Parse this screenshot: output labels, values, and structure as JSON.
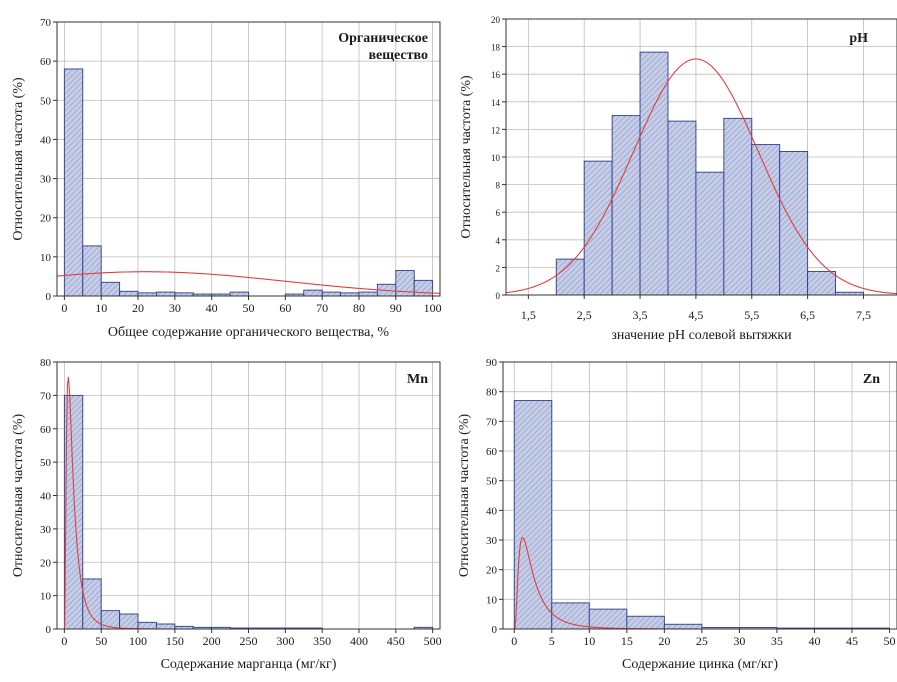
{
  "colors": {
    "bar_fill": "#c6cde6",
    "bar_stroke": "#2c3c8c",
    "bar_hatch": "#8e9bc9",
    "curve": "#e04040",
    "grid": "#bdbdbd",
    "frame": "#333333"
  },
  "chart_data": [
    {
      "type": "bar",
      "title": "Органическое вещество",
      "title_lines": [
        "Органическое",
        "вещество"
      ],
      "xlabel": "Общее содержание органического вещества, %",
      "ylabel": "Относительная частота (%)",
      "xlim": [
        -2,
        102
      ],
      "ylim": [
        0,
        70
      ],
      "xticks": [
        0,
        10,
        20,
        30,
        40,
        50,
        60,
        70,
        80,
        90,
        100
      ],
      "xtick_labels": [
        "0",
        "10",
        "20",
        "30",
        "40",
        "50",
        "60",
        "70",
        "80",
        "90",
        "100"
      ],
      "yticks": [
        0,
        10,
        20,
        30,
        40,
        50,
        60,
        70
      ],
      "ytick_labels": [
        "0",
        "10",
        "20",
        "30",
        "40",
        "50",
        "60",
        "70"
      ],
      "bins": [
        [
          0,
          5
        ],
        [
          5,
          10
        ],
        [
          10,
          15
        ],
        [
          15,
          20
        ],
        [
          20,
          25
        ],
        [
          25,
          30
        ],
        [
          30,
          35
        ],
        [
          35,
          40
        ],
        [
          40,
          45
        ],
        [
          45,
          50
        ],
        [
          50,
          55
        ],
        [
          55,
          60
        ],
        [
          60,
          65
        ],
        [
          65,
          70
        ],
        [
          70,
          75
        ],
        [
          75,
          80
        ],
        [
          80,
          85
        ],
        [
          85,
          90
        ],
        [
          90,
          95
        ],
        [
          95,
          100
        ]
      ],
      "values": [
        58,
        12.8,
        3.5,
        1.2,
        0.8,
        1.0,
        0.8,
        0.5,
        0.5,
        1.0,
        0,
        0,
        0.5,
        1.5,
        1.0,
        0.8,
        1.0,
        3.0,
        6.5,
        4.0
      ],
      "curve": {
        "type": "normal",
        "amplitude": 6.2,
        "mean": 22,
        "sd": 38
      }
    },
    {
      "type": "bar",
      "title": "pH",
      "xlabel": "значение pH солевой вытяжки",
      "ylabel": "Относительная частота (%)",
      "xlim": [
        1.1,
        8.1
      ],
      "ylim": [
        0,
        20
      ],
      "xticks": [
        1.5,
        2.5,
        3.5,
        4.5,
        5.5,
        6.5,
        7.5
      ],
      "xtick_labels": [
        "1,5",
        "2,5",
        "3,5",
        "4,5",
        "5,5",
        "6,5",
        "7,5"
      ],
      "yticks": [
        0,
        2,
        4,
        6,
        8,
        10,
        12,
        14,
        16,
        18,
        20
      ],
      "ytick_labels": [
        "0",
        "2",
        "4",
        "6",
        "8",
        "10",
        "12",
        "14",
        "16",
        "18",
        "20"
      ],
      "bins": [
        [
          2.0,
          2.5
        ],
        [
          2.5,
          3.0
        ],
        [
          3.0,
          3.5
        ],
        [
          3.5,
          4.0
        ],
        [
          4.0,
          4.5
        ],
        [
          4.5,
          5.0
        ],
        [
          5.0,
          5.5
        ],
        [
          5.5,
          6.0
        ],
        [
          6.0,
          6.5
        ],
        [
          6.5,
          7.0
        ],
        [
          7.0,
          7.5
        ]
      ],
      "values": [
        2.6,
        9.7,
        13.0,
        17.6,
        12.6,
        8.9,
        12.8,
        10.9,
        10.4,
        1.7,
        0.2
      ],
      "curve": {
        "type": "normal",
        "amplitude": 17.1,
        "mean": 4.5,
        "sd": 1.12
      }
    },
    {
      "type": "bar",
      "title": "Mn",
      "xlabel": "Содержание марганца (мг/кг)",
      "ylabel": "Относительная частота (%)",
      "xlim": [
        -10,
        510
      ],
      "ylim": [
        0,
        80
      ],
      "xticks": [
        0,
        50,
        100,
        150,
        200,
        250,
        300,
        350,
        400,
        450,
        500
      ],
      "xtick_labels": [
        "0",
        "50",
        "100",
        "150",
        "200",
        "250",
        "300",
        "350",
        "400",
        "450",
        "500"
      ],
      "yticks": [
        0,
        10,
        20,
        30,
        40,
        50,
        60,
        70,
        80
      ],
      "ytick_labels": [
        "0",
        "10",
        "20",
        "30",
        "40",
        "50",
        "60",
        "70",
        "80"
      ],
      "bins": [
        [
          0,
          25
        ],
        [
          25,
          50
        ],
        [
          50,
          75
        ],
        [
          75,
          100
        ],
        [
          100,
          125
        ],
        [
          125,
          150
        ],
        [
          150,
          175
        ],
        [
          175,
          200
        ],
        [
          200,
          225
        ],
        [
          225,
          250
        ],
        [
          250,
          275
        ],
        [
          275,
          300
        ],
        [
          300,
          325
        ],
        [
          325,
          350
        ],
        [
          475,
          500
        ]
      ],
      "values": [
        70,
        15,
        5.5,
        4.5,
        2.0,
        1.5,
        0.8,
        0.5,
        0.5,
        0.3,
        0.3,
        0.3,
        0.3,
        0.3,
        0.5
      ],
      "curve": {
        "type": "lognormal",
        "amplitude": 1100,
        "mu": 2.3,
        "sigma": 0.8
      }
    },
    {
      "type": "bar",
      "title": "Zn",
      "xlabel": "Содержание цинка (мг/кг)",
      "ylabel": "Относительная частота (%)",
      "xlim": [
        -1.5,
        51
      ],
      "ylim": [
        0,
        90
      ],
      "xticks": [
        0,
        5,
        10,
        15,
        20,
        25,
        30,
        35,
        40,
        45,
        50
      ],
      "xtick_labels": [
        "0",
        "5",
        "10",
        "15",
        "20",
        "25",
        "30",
        "35",
        "40",
        "45",
        "50"
      ],
      "yticks": [
        0,
        10,
        20,
        30,
        40,
        50,
        60,
        70,
        80,
        90
      ],
      "ytick_labels": [
        "0",
        "10",
        "20",
        "30",
        "40",
        "50",
        "60",
        "70",
        "80",
        "90"
      ],
      "bins": [
        [
          0,
          5
        ],
        [
          5,
          10
        ],
        [
          10,
          15
        ],
        [
          15,
          20
        ],
        [
          20,
          25
        ],
        [
          25,
          30
        ],
        [
          30,
          35
        ],
        [
          35,
          40
        ],
        [
          40,
          45
        ],
        [
          45,
          50
        ]
      ],
      "values": [
        77,
        8.8,
        6.7,
        4.3,
        1.6,
        0.5,
        0.5,
        0.3,
        0.3,
        0.3
      ],
      "curve": {
        "type": "lognormal",
        "amplitude": 95,
        "mu": 0.75,
        "sigma": 0.8
      }
    }
  ]
}
